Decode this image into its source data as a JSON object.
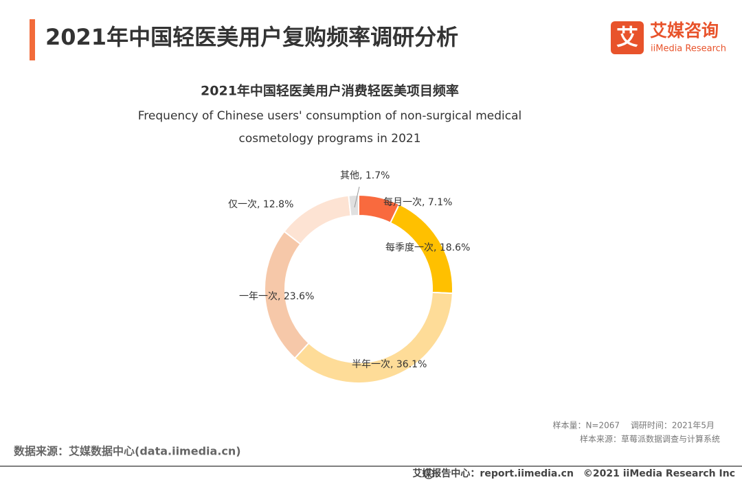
{
  "header": {
    "title": "2021年中国轻医美用户复购频率调研分析",
    "logo_mark": "艾",
    "logo_name": "艾媒咨询",
    "logo_sub": "iiMedia Research"
  },
  "chart_data": {
    "type": "donut",
    "title": "2021年中国轻医美用户消费轻医美项目频率",
    "subtitle": [
      "Frequency of Chinese users' consumption of non-surgical medical",
      "cosmetology programs in 2021"
    ],
    "categories": [
      "每月一次, 7.1%",
      "每季度一次, 18.6%",
      "半年一次, 36.1%",
      "一年一次, 23.6%",
      "仅一次, 12.8%",
      "其他, 1.7%"
    ],
    "values": [
      7.1,
      18.6,
      36.1,
      23.6,
      12.8,
      1.7
    ],
    "colors": [
      "#f96a3e",
      "#ffc000",
      "#fedc98",
      "#f6c8a9",
      "#fde3d3",
      "#e0e0e0"
    ]
  },
  "notes": [
    "样本量：N=2067　 调研时间：2021年5月",
    "样本来源：草莓派数据调查与计算系统"
  ],
  "source": "数据来源：艾媒数据中心(data.iimedia.cn)",
  "footer": "艾媒报告中心：report.iimedia.cn　©2021  iiMedia Research  Inc"
}
